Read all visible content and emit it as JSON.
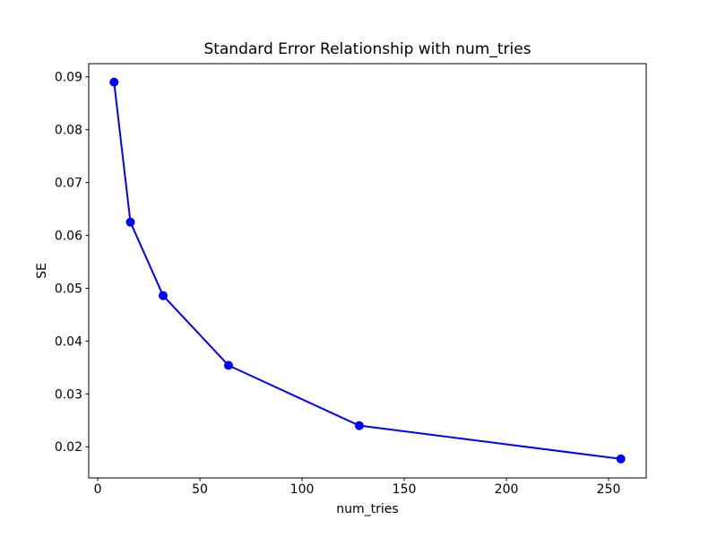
{
  "figure": {
    "title": "Standard Error Relationship with num_tries",
    "xlabel": "num_tries",
    "ylabel": "SE"
  },
  "chart_data": {
    "type": "line",
    "title": "Standard Error Relationship with num_tries",
    "xlabel": "num_tries",
    "ylabel": "SE",
    "x": [
      8,
      16,
      32,
      64,
      128,
      256
    ],
    "y": [
      0.089,
      0.0625,
      0.0486,
      0.0354,
      0.024,
      0.0177
    ],
    "series_name": "SE",
    "x_ticks": [
      0,
      50,
      100,
      150,
      200,
      250
    ],
    "y_ticks": [
      0.02,
      0.03,
      0.04,
      0.05,
      0.06,
      0.07,
      0.08,
      0.09
    ],
    "y_tick_decimals": 2,
    "xlim": [
      -4.4,
      268.4
    ],
    "ylim": [
      0.0141,
      0.0925
    ],
    "grid": false,
    "legend": null,
    "line_color": "#0000ff",
    "marker": "o",
    "marker_color": "#0000ff",
    "axes_color": "#000000",
    "background_color": "#ffffff"
  }
}
